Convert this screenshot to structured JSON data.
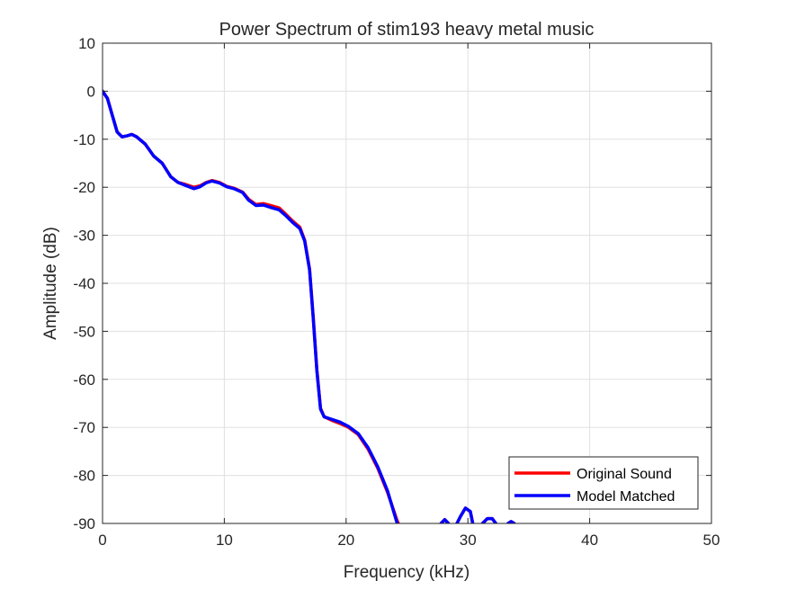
{
  "chart_data": {
    "type": "line",
    "title": "Power Spectrum of stim193 heavy metal music",
    "xlabel": "Frequency (kHz)",
    "ylabel": "Amplitude (dB)",
    "xlim": [
      0,
      50
    ],
    "ylim": [
      -90,
      10
    ],
    "xticks": [
      0,
      10,
      20,
      30,
      40,
      50
    ],
    "yticks": [
      10,
      0,
      -10,
      -20,
      -30,
      -40,
      -50,
      -60,
      -70,
      -80,
      -90
    ],
    "grid": true,
    "legend_position": "bottom-right",
    "series": [
      {
        "name": "Original Sound",
        "color": "#ff0000",
        "segments": [
          [
            [
              0,
              0
            ],
            [
              0.4,
              -1.5
            ],
            [
              0.8,
              -5
            ],
            [
              1.2,
              -8.5
            ],
            [
              1.6,
              -9.5
            ],
            [
              2.0,
              -9.3
            ],
            [
              2.4,
              -9.0
            ],
            [
              2.8,
              -9.5
            ],
            [
              3.5,
              -11
            ],
            [
              4.2,
              -13.5
            ],
            [
              4.9,
              -15
            ],
            [
              5.6,
              -17.8
            ],
            [
              6.2,
              -19
            ],
            [
              6.8,
              -19.4
            ],
            [
              7.5,
              -20.0
            ],
            [
              8.0,
              -19.7
            ],
            [
              8.5,
              -19
            ],
            [
              9.0,
              -18.6
            ],
            [
              9.6,
              -19
            ],
            [
              10.2,
              -19.8
            ],
            [
              10.8,
              -20.2
            ],
            [
              11.5,
              -21
            ],
            [
              12.0,
              -22.5
            ],
            [
              12.6,
              -23.6
            ],
            [
              13.2,
              -23.4
            ],
            [
              13.8,
              -23.8
            ],
            [
              14.5,
              -24.3
            ],
            [
              15.0,
              -25.5
            ],
            [
              15.6,
              -27
            ],
            [
              16.2,
              -28.3
            ],
            [
              16.6,
              -31
            ],
            [
              17.0,
              -37
            ],
            [
              17.3,
              -47
            ],
            [
              17.6,
              -58
            ],
            [
              17.9,
              -66
            ],
            [
              18.2,
              -67.8
            ],
            [
              18.8,
              -68.5
            ],
            [
              19.5,
              -69.2
            ],
            [
              20.2,
              -70
            ],
            [
              21.0,
              -71.5
            ],
            [
              21.8,
              -74.5
            ],
            [
              22.6,
              -78.5
            ],
            [
              23.4,
              -83.5
            ],
            [
              24.2,
              -89.5
            ],
            [
              24.3,
              -90
            ]
          ],
          [
            [
              27.8,
              -90
            ],
            [
              28.1,
              -89.2
            ],
            [
              28.4,
              -90
            ]
          ],
          [
            [
              29.1,
              -90
            ],
            [
              29.4,
              -88.5
            ],
            [
              29.8,
              -86.8
            ],
            [
              30.2,
              -87.5
            ],
            [
              30.4,
              -90
            ]
          ],
          [
            [
              31.2,
              -90
            ],
            [
              31.6,
              -89.0
            ],
            [
              32.0,
              -89.0
            ],
            [
              32.3,
              -90
            ]
          ],
          [
            [
              33.3,
              -90
            ],
            [
              33.55,
              -89.6
            ],
            [
              33.8,
              -90
            ]
          ]
        ]
      },
      {
        "name": "Model Matched",
        "color": "#0000ff",
        "segments": [
          [
            [
              0,
              0
            ],
            [
              0.4,
              -1.5
            ],
            [
              0.8,
              -5
            ],
            [
              1.2,
              -8.5
            ],
            [
              1.6,
              -9.5
            ],
            [
              2.0,
              -9.3
            ],
            [
              2.4,
              -9.0
            ],
            [
              2.8,
              -9.5
            ],
            [
              3.5,
              -11
            ],
            [
              4.2,
              -13.5
            ],
            [
              4.9,
              -15
            ],
            [
              5.6,
              -17.8
            ],
            [
              6.2,
              -19
            ],
            [
              6.8,
              -19.6
            ],
            [
              7.5,
              -20.3
            ],
            [
              8.0,
              -19.9
            ],
            [
              8.5,
              -19.1
            ],
            [
              9.0,
              -18.7
            ],
            [
              9.6,
              -19.1
            ],
            [
              10.2,
              -19.9
            ],
            [
              10.8,
              -20.3
            ],
            [
              11.5,
              -21.1
            ],
            [
              12.0,
              -22.7
            ],
            [
              12.6,
              -23.8
            ],
            [
              13.2,
              -23.7
            ],
            [
              13.8,
              -24.2
            ],
            [
              14.5,
              -24.7
            ],
            [
              15.0,
              -25.8
            ],
            [
              15.6,
              -27.3
            ],
            [
              16.2,
              -28.6
            ],
            [
              16.6,
              -31.2
            ],
            [
              17.0,
              -37.2
            ],
            [
              17.3,
              -47.2
            ],
            [
              17.6,
              -58.2
            ],
            [
              17.9,
              -66.2
            ],
            [
              18.2,
              -67.8
            ],
            [
              18.8,
              -68.3
            ],
            [
              19.5,
              -68.9
            ],
            [
              20.2,
              -69.8
            ],
            [
              21.0,
              -71.3
            ],
            [
              21.8,
              -74.2
            ],
            [
              22.6,
              -78.2
            ],
            [
              23.4,
              -83.2
            ],
            [
              24.1,
              -89.2
            ],
            [
              24.2,
              -90
            ]
          ],
          [
            [
              27.8,
              -90
            ],
            [
              28.1,
              -89.2
            ],
            [
              28.4,
              -90
            ]
          ],
          [
            [
              29.1,
              -90
            ],
            [
              29.4,
              -88.5
            ],
            [
              29.8,
              -86.8
            ],
            [
              30.2,
              -87.5
            ],
            [
              30.4,
              -90
            ]
          ],
          [
            [
              31.2,
              -90
            ],
            [
              31.6,
              -89.0
            ],
            [
              32.0,
              -89.0
            ],
            [
              32.3,
              -90
            ]
          ],
          [
            [
              33.3,
              -90
            ],
            [
              33.55,
              -89.6
            ],
            [
              33.8,
              -90
            ]
          ]
        ]
      }
    ]
  }
}
